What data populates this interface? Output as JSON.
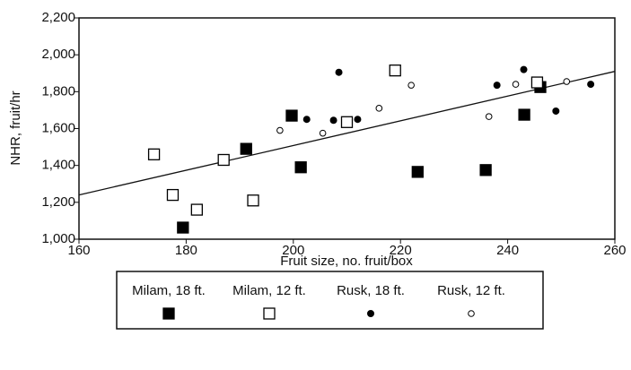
{
  "chart_data": {
    "type": "scatter",
    "xlabel": "Fruit size, no. fruit/box",
    "ylabel": "NHR, fruit/hr",
    "xlim": [
      160,
      260
    ],
    "xticks": [
      160,
      180,
      200,
      220,
      240,
      260
    ],
    "ylim": [
      1000,
      2200
    ],
    "yticks": [
      {
        "value": 1000,
        "label": "1,000"
      },
      {
        "value": 1200,
        "label": "1,200"
      },
      {
        "value": 1400,
        "label": "1,400"
      },
      {
        "value": 1600,
        "label": "1,600"
      },
      {
        "value": 1800,
        "label": "1,800"
      },
      {
        "value": 2000,
        "label": "2,000"
      },
      {
        "value": 2200,
        "label": "2,200"
      }
    ],
    "series": [
      {
        "name": "Milam, 18 ft.",
        "color": "#000000",
        "marker": "square",
        "filled": true,
        "x": [
          179.4,
          191.2,
          199.7,
          201.4,
          223.2,
          235.9,
          243.1,
          246.1
        ],
        "values": [
          1063,
          1490,
          1670,
          1390,
          1365,
          1375,
          1675,
          1825
        ]
      },
      {
        "name": "Milam, 12 ft.",
        "color": "#000000",
        "marker": "square",
        "filled": false,
        "x": [
          174,
          177.5,
          182,
          187,
          192.5,
          210,
          219,
          245.5
        ],
        "values": [
          1460,
          1240,
          1160,
          1430,
          1210,
          1635,
          1915,
          1850
        ]
      },
      {
        "name": "Rusk, 18 ft.",
        "color": "#000000",
        "marker": "circle",
        "filled": true,
        "x": [
          208.5,
          202.5,
          207.5,
          212,
          238,
          243,
          249,
          255.5
        ],
        "values": [
          1905,
          1650,
          1645,
          1650,
          1835,
          1920,
          1695,
          1840
        ]
      },
      {
        "name": "Rusk, 12 ft.",
        "color": "#000000",
        "marker": "circle",
        "filled": false,
        "x": [
          197.5,
          205.5,
          216,
          222,
          236.5,
          241.5,
          251
        ],
        "values": [
          1590,
          1575,
          1710,
          1835,
          1665,
          1840,
          1855
        ]
      }
    ],
    "trendline": {
      "x": [
        160,
        260
      ],
      "values": [
        1240,
        1910
      ]
    }
  }
}
